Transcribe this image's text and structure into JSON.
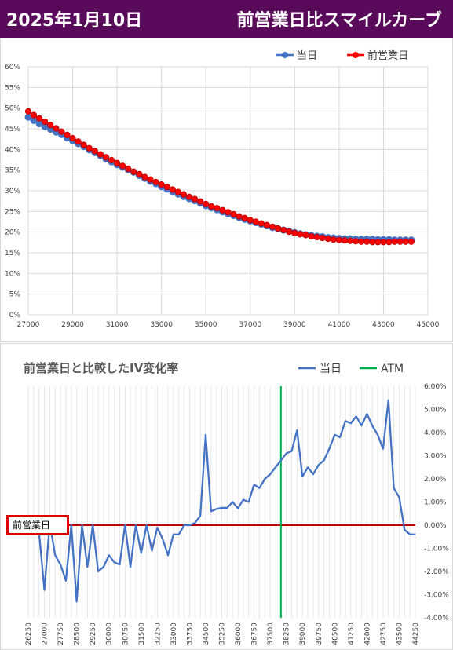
{
  "header": {
    "title": "2025年1月10日",
    "subtitle": "前営業日比スマイルカーブ",
    "bg_color": "#5a0a5a"
  },
  "chart_data": [
    {
      "type": "line",
      "title": "",
      "xlabel": "",
      "ylabel": "",
      "xlim": [
        27000,
        45000
      ],
      "ylim": [
        0,
        0.6
      ],
      "x_ticks": [
        "27000",
        "29000",
        "31000",
        "33000",
        "35000",
        "37000",
        "39000",
        "41000",
        "43000",
        "45000"
      ],
      "y_ticks": [
        "0%",
        "5%",
        "10%",
        "15%",
        "20%",
        "25%",
        "30%",
        "35%",
        "40%",
        "45%",
        "50%",
        "55%",
        "60%"
      ],
      "grid": true,
      "legend_position": "top-right",
      "series": [
        {
          "name": "当日",
          "color": "#4472c4",
          "x": [
            27000,
            27250,
            27500,
            27750,
            28000,
            28250,
            28500,
            28750,
            29000,
            29250,
            29500,
            29750,
            30000,
            30250,
            30500,
            30750,
            31000,
            31250,
            31500,
            31750,
            32000,
            32250,
            32500,
            32750,
            33000,
            33250,
            33500,
            33750,
            34000,
            34250,
            34500,
            34750,
            35000,
            35250,
            35500,
            35750,
            36000,
            36250,
            36500,
            36750,
            37000,
            37250,
            37500,
            37750,
            38000,
            38250,
            38500,
            38750,
            39000,
            39250,
            39500,
            39750,
            40000,
            40250,
            40500,
            40750,
            41000,
            41250,
            41500,
            41750,
            42000,
            42250,
            42500,
            42750,
            43000,
            43250,
            43500,
            43750,
            44000,
            44250
          ],
          "values": [
            0.478,
            0.47,
            0.462,
            0.455,
            0.449,
            0.442,
            0.436,
            0.428,
            0.421,
            0.414,
            0.407,
            0.399,
            0.392,
            0.385,
            0.377,
            0.37,
            0.363,
            0.357,
            0.351,
            0.345,
            0.337,
            0.33,
            0.323,
            0.317,
            0.31,
            0.304,
            0.298,
            0.292,
            0.286,
            0.281,
            0.276,
            0.27,
            0.264,
            0.259,
            0.254,
            0.249,
            0.244,
            0.24,
            0.235,
            0.231,
            0.227,
            0.223,
            0.219,
            0.215,
            0.211,
            0.208,
            0.205,
            0.202,
            0.199,
            0.196,
            0.194,
            0.192,
            0.19,
            0.189,
            0.187,
            0.186,
            0.185,
            0.184,
            0.184,
            0.183,
            0.183,
            0.183,
            0.183,
            0.182,
            0.182,
            0.182,
            0.181,
            0.181,
            0.181,
            0.181
          ]
        },
        {
          "name": "前営業日",
          "color": "#ff0000",
          "x": [
            27000,
            27250,
            27500,
            27750,
            28000,
            28250,
            28500,
            28750,
            29000,
            29250,
            29500,
            29750,
            30000,
            30250,
            30500,
            30750,
            31000,
            31250,
            31500,
            31750,
            32000,
            32250,
            32500,
            32750,
            33000,
            33250,
            33500,
            33750,
            34000,
            34250,
            34500,
            34750,
            35000,
            35250,
            35500,
            35750,
            36000,
            36250,
            36500,
            36750,
            37000,
            37250,
            37500,
            37750,
            38000,
            38250,
            38500,
            38750,
            39000,
            39250,
            39500,
            39750,
            40000,
            40250,
            40500,
            40750,
            41000,
            41250,
            41500,
            41750,
            42000,
            42250,
            42500,
            42750,
            43000,
            43250,
            43500,
            43750,
            44000,
            44250
          ],
          "values": [
            0.492,
            0.483,
            0.475,
            0.467,
            0.459,
            0.451,
            0.443,
            0.435,
            0.427,
            0.419,
            0.411,
            0.403,
            0.396,
            0.388,
            0.381,
            0.374,
            0.367,
            0.36,
            0.353,
            0.346,
            0.34,
            0.333,
            0.327,
            0.321,
            0.315,
            0.309,
            0.303,
            0.297,
            0.291,
            0.285,
            0.28,
            0.274,
            0.268,
            0.262,
            0.258,
            0.253,
            0.248,
            0.243,
            0.238,
            0.234,
            0.229,
            0.225,
            0.221,
            0.217,
            0.213,
            0.209,
            0.205,
            0.201,
            0.198,
            0.195,
            0.193,
            0.19,
            0.188,
            0.186,
            0.184,
            0.182,
            0.181,
            0.18,
            0.179,
            0.178,
            0.177,
            0.177,
            0.176,
            0.176,
            0.176,
            0.176,
            0.177,
            0.177,
            0.177,
            0.177
          ]
        }
      ]
    },
    {
      "type": "line",
      "title": "前営業日と比較したIV変化率",
      "xlabel": "",
      "ylabel": "",
      "xlim": [
        26250,
        44250
      ],
      "ylim": [
        -0.04,
        0.06
      ],
      "x_ticks": [
        "26250",
        "27000",
        "27750",
        "28500",
        "29250",
        "30000",
        "30750",
        "31500",
        "32250",
        "33000",
        "33750",
        "34500",
        "35250",
        "36000",
        "36750",
        "37500",
        "38250",
        "39000",
        "39750",
        "40500",
        "41250",
        "42000",
        "42750",
        "43500",
        "44250"
      ],
      "y_ticks": [
        "6.00%",
        "5.00%",
        "4.00%",
        "3.00%",
        "2.00%",
        "1.00%",
        "0.00%",
        "-1.00%",
        "-2.00%",
        "-3.00%",
        "-4.00%"
      ],
      "grid": true,
      "legend_position": "top-right",
      "reference_line_label": "前営業日",
      "reference_line_value": 0,
      "reference_line_color": "#c00000",
      "atm_strike": 38000,
      "series": [
        {
          "name": "当日",
          "color": "#4472c4",
          "x": [
            26750,
            27000,
            27250,
            27500,
            27750,
            28000,
            28250,
            28500,
            28750,
            29000,
            29250,
            29500,
            29750,
            30000,
            30250,
            30500,
            30750,
            31000,
            31250,
            31500,
            31750,
            32000,
            32250,
            32500,
            32750,
            33000,
            33250,
            33500,
            33750,
            34000,
            34250,
            34500,
            34750,
            35000,
            35250,
            35500,
            35750,
            36000,
            36250,
            36500,
            36750,
            37000,
            37250,
            37500,
            37750,
            38000,
            38250,
            38500,
            38750,
            39000,
            39250,
            39500,
            39750,
            40000,
            40250,
            40500,
            40750,
            41000,
            41250,
            41500,
            41750,
            42000,
            42250,
            42500,
            42750,
            43000,
            43250,
            43500,
            43750,
            44000,
            44250
          ],
          "values": [
            -0.003,
            -0.028,
            0.001,
            -0.013,
            -0.017,
            -0.024,
            0.0,
            -0.033,
            0.0,
            -0.018,
            0.0,
            -0.02,
            -0.018,
            -0.013,
            -0.016,
            -0.017,
            0.0,
            -0.018,
            0.0,
            -0.012,
            0.0,
            -0.011,
            -0.001,
            -0.006,
            -0.013,
            -0.004,
            -0.004,
            0.0,
            0.0,
            0.001,
            0.004,
            0.039,
            0.006,
            0.007,
            0.0075,
            0.0075,
            0.01,
            0.0073,
            0.011,
            0.01,
            0.0175,
            0.016,
            0.02,
            0.022,
            0.025,
            0.028,
            0.031,
            0.032,
            0.041,
            0.021,
            0.025,
            0.022,
            0.026,
            0.028,
            0.033,
            0.039,
            0.038,
            0.045,
            0.044,
            0.047,
            0.043,
            0.048,
            0.043,
            0.039,
            0.033,
            0.054,
            0.016,
            0.012,
            -0.002,
            -0.004,
            -0.004
          ]
        },
        {
          "name": "ATM",
          "color": "#00b050",
          "values": []
        }
      ]
    }
  ]
}
